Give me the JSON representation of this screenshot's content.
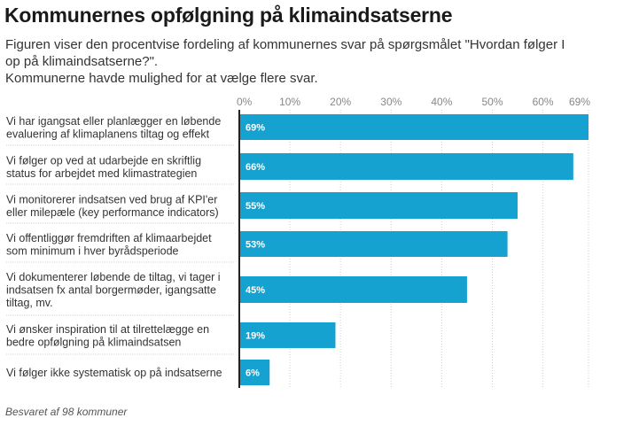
{
  "title": "Kommunernes opfølgning på klimaindsatserne",
  "subtitle_lines": [
    "Figuren viser den procentvise fordeling af kommunernes svar på spørgsmålet \"Hvordan følger I",
    "op på klimaindsatserne?\".",
    "Kommunerne havde mulighed for at vælge flere svar."
  ],
  "footer": "Besvaret af 98 kommuner",
  "colors": {
    "bar": "#16a2d0",
    "axis": "#222222",
    "grid": "#cfcfcf",
    "separator": "#d6d6d6"
  },
  "chart_data": {
    "type": "bar",
    "orientation": "horizontal",
    "categories": [
      [
        "Vi har igangsat eller planlægger en løbende",
        "evaluering af klimaplanens tiltag og effekt"
      ],
      [
        "Vi følger op ved at udarbejde en skriftlig",
        "status for arbejdet med klimastrategien"
      ],
      [
        "Vi monitorerer indsatsen ved brug af KPI'er",
        "eller milepæle (key performance indicators)"
      ],
      [
        "Vi offentliggør fremdriften af klimaarbejdet",
        "som minimum i hver byrådsperiode"
      ],
      [
        "Vi dokumenterer løbende de tiltag, vi tager i",
        "indsatsen fx antal borgermøder, igangsatte",
        "tiltag, mv."
      ],
      [
        "Vi ønsker inspiration til at tilrettelægge en",
        "bedre opfølgning på klimaindsatsen"
      ],
      [
        "Vi følger ikke systematisk op på indsatserne"
      ]
    ],
    "values": [
      69,
      66,
      55,
      53,
      45,
      19,
      6
    ],
    "value_labels": [
      "69%",
      "66%",
      "55%",
      "53%",
      "45%",
      "19%",
      "6%"
    ],
    "x_ticks": [
      0,
      10,
      20,
      30,
      40,
      50,
      60,
      69
    ],
    "x_tick_labels": [
      "0%",
      "10%",
      "20%",
      "30%",
      "40%",
      "50%",
      "60%",
      "69%"
    ],
    "xlim": [
      0,
      69
    ],
    "grid": true
  }
}
